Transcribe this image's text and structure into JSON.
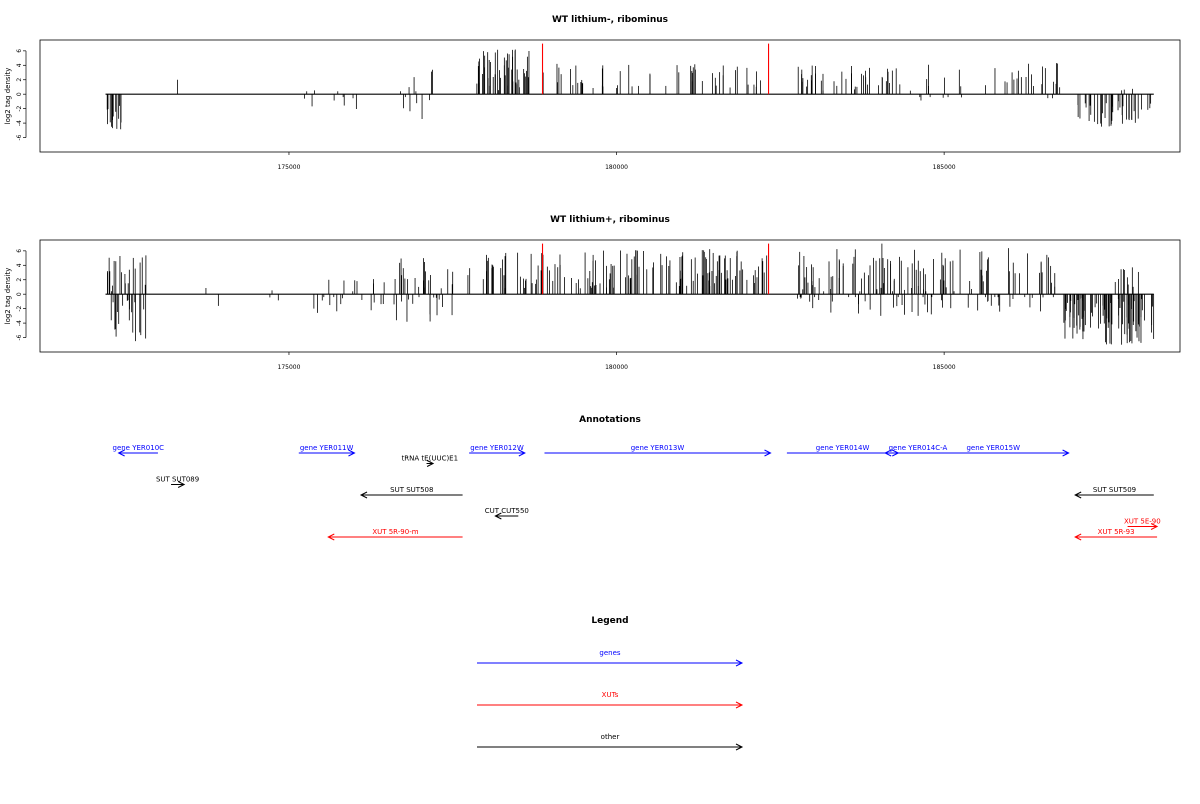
{
  "colors": {
    "genes": "#0000ff",
    "xuts": "#ff0000",
    "other": "#000000",
    "marker": "#ff0000"
  },
  "chart_data": [
    {
      "type": "bar",
      "title": "WT lithium-, ribominus",
      "ylabel": "log2 tag density",
      "xlim": [
        171200,
        188600
      ],
      "ylim": [
        -8,
        7.5
      ],
      "xticks": [
        175000,
        180000,
        185000
      ],
      "xtick_labels": [
        "175000",
        "180000",
        "185000"
      ],
      "yticks": [
        -6,
        -4,
        -2,
        0,
        2,
        4,
        6
      ],
      "ytick_labels": [
        "-6",
        "-4",
        "-2",
        "0",
        "2",
        "4",
        "6"
      ],
      "markers": [
        {
          "x": 178870,
          "value": 7
        },
        {
          "x": 182320,
          "value": 7
        }
      ],
      "segments": [
        {
          "x0": 172200,
          "x1": 172500,
          "count": 14,
          "lo": -5,
          "hi": -1,
          "seed": 11
        },
        {
          "x0": 173300,
          "x1": 173300,
          "count": 1,
          "lo": 2,
          "hi": 2,
          "seed": 12
        },
        {
          "x0": 175230,
          "x1": 175400,
          "count": 4,
          "lo": -2.5,
          "hi": 3,
          "seed": 13
        },
        {
          "x0": 175600,
          "x1": 176200,
          "count": 6,
          "lo": -2.5,
          "hi": 2.5,
          "seed": 14
        },
        {
          "x0": 176700,
          "x1": 177250,
          "count": 12,
          "lo": -3.5,
          "hi": 3.5,
          "seed": 15
        },
        {
          "x0": 177850,
          "x1": 178700,
          "count": 48,
          "lo": 0.5,
          "hi": 6.3,
          "seed": 16
        },
        {
          "x0": 178880,
          "x1": 178920,
          "count": 1,
          "lo": 3,
          "hi": 3,
          "seed": 17
        },
        {
          "x0": 179000,
          "x1": 182250,
          "count": 52,
          "lo": 0.8,
          "hi": 4.3,
          "seed": 18
        },
        {
          "x0": 182750,
          "x1": 184400,
          "count": 40,
          "lo": 0.5,
          "hi": 4,
          "seed": 19
        },
        {
          "x0": 184400,
          "x1": 186800,
          "count": 36,
          "lo": -1,
          "hi": 4.5,
          "seed": 20
        },
        {
          "x0": 187000,
          "x1": 188200,
          "count": 40,
          "lo": -4.5,
          "hi": -0.8,
          "seed": 21
        },
        {
          "x0": 187700,
          "x1": 187900,
          "count": 3,
          "lo": 0.5,
          "hi": 1,
          "seed": 22
        }
      ]
    },
    {
      "type": "bar",
      "title": "WT lithium+, ribominus",
      "ylabel": "log2 tag density",
      "xlim": [
        171200,
        188600
      ],
      "ylim": [
        -8,
        7.5
      ],
      "xticks": [
        175000,
        180000,
        185000
      ],
      "xtick_labels": [
        "175000",
        "180000",
        "185000"
      ],
      "yticks": [
        -6,
        -4,
        -2,
        0,
        2,
        4,
        6
      ],
      "ytick_labels": [
        "-6",
        "-4",
        "-2",
        "0",
        "2",
        "4",
        "6"
      ],
      "markers": [
        {
          "x": 178870,
          "value": 7
        },
        {
          "x": 182320,
          "value": 7
        }
      ],
      "segments": [
        {
          "x0": 172200,
          "x1": 172850,
          "count": 40,
          "lo": -7,
          "hi": 5.5,
          "seed": 31
        },
        {
          "x0": 173500,
          "x1": 175200,
          "count": 5,
          "lo": -2.2,
          "hi": 1,
          "seed": 32
        },
        {
          "x0": 175300,
          "x1": 176600,
          "count": 22,
          "lo": -3,
          "hi": 2.5,
          "seed": 33
        },
        {
          "x0": 176600,
          "x1": 177500,
          "count": 36,
          "lo": -4,
          "hi": 5,
          "seed": 34
        },
        {
          "x0": 177700,
          "x1": 182300,
          "count": 150,
          "lo": 0.8,
          "hi": 6.3,
          "seed": 35
        },
        {
          "x0": 182750,
          "x1": 186700,
          "count": 150,
          "lo": -3,
          "hi": 6.5,
          "seed": 36
        },
        {
          "x0": 184050,
          "x1": 184050,
          "count": 1,
          "lo": 7,
          "hi": 7,
          "seed": 37
        },
        {
          "x0": 186800,
          "x1": 188200,
          "count": 90,
          "lo": -7,
          "hi": -0.5,
          "seed": 38
        },
        {
          "x0": 187600,
          "x1": 188000,
          "count": 10,
          "lo": 1,
          "hi": 4,
          "seed": 39
        }
      ]
    }
  ],
  "annotations": {
    "title": "Annotations",
    "items": [
      {
        "label": "gene YER010C",
        "kind": "genes",
        "x1": 172400,
        "x2": 173000,
        "dir": "left",
        "row": 0
      },
      {
        "label": "gene YER011W",
        "kind": "genes",
        "x1": 175150,
        "x2": 176000,
        "dir": "right",
        "row": -1
      },
      {
        "label": "gene YER012W",
        "kind": "genes",
        "x1": 177750,
        "x2": 178600,
        "dir": "right",
        "row": -1
      },
      {
        "label": "gene YER013W",
        "kind": "genes",
        "x1": 178900,
        "x2": 182350,
        "dir": "right",
        "row": -1
      },
      {
        "label": "gene YER014W",
        "kind": "genes",
        "x1": 182600,
        "x2": 184300,
        "dir": "right",
        "row": -1
      },
      {
        "label": "gene YER014C-A",
        "kind": "genes",
        "x1": 184100,
        "x2": 185100,
        "dir": "left",
        "row": 0
      },
      {
        "label": "gene YER015W",
        "kind": "genes",
        "x1": 184600,
        "x2": 186900,
        "dir": "right",
        "row": -1
      },
      {
        "label": "tRNA tE(UUC)E1",
        "kind": "other",
        "x1": 177100,
        "x2": 177200,
        "dir": "right",
        "row": 1
      },
      {
        "label": "SUT SUT089",
        "kind": "other",
        "x1": 173200,
        "x2": 173400,
        "dir": "right",
        "row": 3
      },
      {
        "label": "SUT SUT508",
        "kind": "other",
        "x1": 176100,
        "x2": 177650,
        "dir": "left",
        "row": 4
      },
      {
        "label": "CUT CUT550",
        "kind": "other",
        "x1": 178150,
        "x2": 178500,
        "dir": "left",
        "row": 6
      },
      {
        "label": "SUT SUT509",
        "kind": "other",
        "x1": 187000,
        "x2": 188200,
        "dir": "left",
        "row": 4
      },
      {
        "label": "XUT 5R-90-m",
        "kind": "xuts",
        "x1": 175600,
        "x2": 177650,
        "dir": "left",
        "row": 8
      },
      {
        "label": "XUT 5E-90",
        "kind": "xuts",
        "x1": 187800,
        "x2": 188250,
        "dir": "right",
        "row": 7
      },
      {
        "label": "XUT 5R-93",
        "kind": "xuts",
        "x1": 187000,
        "x2": 188250,
        "dir": "left",
        "row": 8
      }
    ]
  },
  "legend": {
    "title": "Legend",
    "entries": [
      {
        "label": "genes",
        "kind": "genes"
      },
      {
        "label": "XUTs",
        "kind": "xuts"
      },
      {
        "label": "other",
        "kind": "other"
      }
    ]
  }
}
